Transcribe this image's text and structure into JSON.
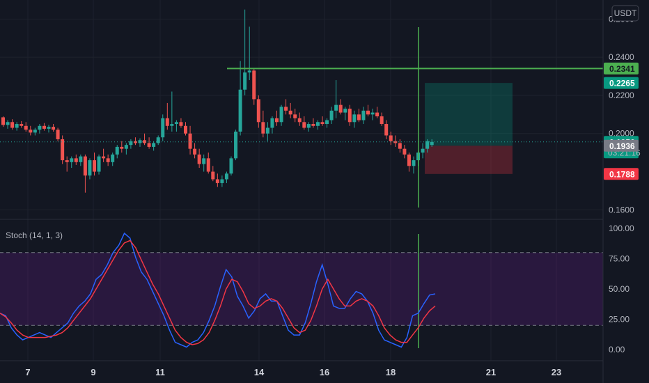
{
  "currency_badge": "USDT",
  "chart_data": [
    {
      "type": "candlestick",
      "y_axis_ticks": [
        "0.2600",
        "0.2400",
        "0.2200",
        "0.2000",
        "0.1600"
      ],
      "ylim": [
        0.155,
        0.27
      ],
      "x_axis_ticks": [
        "7",
        "9",
        "11",
        "14",
        "16",
        "18",
        "21",
        "23"
      ],
      "price_tags": [
        {
          "label": "0.2341",
          "value": 0.2341,
          "bg": "#4caf50",
          "fg": "#131722"
        },
        {
          "label": "0.2265",
          "value": 0.2265,
          "bg": "#089981",
          "fg": "#ffffff"
        },
        {
          "label": "0.1956",
          "value": 0.1956,
          "bg": "#089981",
          "fg": "#ffffff",
          "sub": "03:21:16"
        },
        {
          "label": "0.1936",
          "value": 0.1936,
          "bg": "#787b86",
          "fg": "#ffffff"
        },
        {
          "label": "0.1788",
          "value": 0.1788,
          "bg": "#f23645",
          "fg": "#ffffff"
        }
      ],
      "horizontal_line_value": 0.2341,
      "position": {
        "entry": 0.1936,
        "target": 0.2265,
        "stop": 0.1788
      },
      "candles": [
        [
          0.2085,
          0.209,
          0.2035,
          0.2045
        ],
        [
          0.2045,
          0.207,
          0.2025,
          0.206
        ],
        [
          0.206,
          0.2075,
          0.202,
          0.203
        ],
        [
          0.203,
          0.206,
          0.2015,
          0.205
        ],
        [
          0.205,
          0.2065,
          0.203,
          0.204
        ],
        [
          0.204,
          0.206,
          0.201,
          0.202
        ],
        [
          0.202,
          0.204,
          0.199,
          0.2005
        ],
        [
          0.2005,
          0.203,
          0.199,
          0.202
        ],
        [
          0.202,
          0.205,
          0.2,
          0.204
        ],
        [
          0.204,
          0.2055,
          0.2015,
          0.2025
        ],
        [
          0.2025,
          0.2045,
          0.2005,
          0.2035
        ],
        [
          0.2035,
          0.205,
          0.201,
          0.202
        ],
        [
          0.202,
          0.203,
          0.196,
          0.197
        ],
        [
          0.197,
          0.199,
          0.184,
          0.186
        ],
        [
          0.186,
          0.188,
          0.18,
          0.185
        ],
        [
          0.185,
          0.188,
          0.182,
          0.187
        ],
        [
          0.187,
          0.189,
          0.1835,
          0.185
        ],
        [
          0.185,
          0.189,
          0.183,
          0.188
        ],
        [
          0.188,
          0.189,
          0.169,
          0.178
        ],
        [
          0.178,
          0.187,
          0.176,
          0.186
        ],
        [
          0.186,
          0.19,
          0.178,
          0.18
        ],
        [
          0.18,
          0.189,
          0.1785,
          0.188
        ],
        [
          0.188,
          0.192,
          0.185,
          0.187
        ],
        [
          0.187,
          0.189,
          0.183,
          0.185
        ],
        [
          0.185,
          0.19,
          0.183,
          0.189
        ],
        [
          0.189,
          0.194,
          0.187,
          0.193
        ],
        [
          0.193,
          0.196,
          0.19,
          0.192
        ],
        [
          0.192,
          0.195,
          0.189,
          0.194
        ],
        [
          0.194,
          0.197,
          0.192,
          0.196
        ],
        [
          0.196,
          0.198,
          0.194,
          0.195
        ],
        [
          0.195,
          0.1975,
          0.193,
          0.1965
        ],
        [
          0.1965,
          0.2,
          0.194,
          0.195
        ],
        [
          0.195,
          0.198,
          0.192,
          0.193
        ],
        [
          0.193,
          0.196,
          0.191,
          0.195
        ],
        [
          0.195,
          0.199,
          0.194,
          0.198
        ],
        [
          0.198,
          0.21,
          0.196,
          0.208
        ],
        [
          0.208,
          0.216,
          0.202,
          0.204
        ],
        [
          0.204,
          0.222,
          0.201,
          0.205
        ],
        [
          0.205,
          0.207,
          0.201,
          0.206
        ],
        [
          0.206,
          0.208,
          0.203,
          0.204
        ],
        [
          0.204,
          0.206,
          0.199,
          0.2
        ],
        [
          0.2,
          0.204,
          0.189,
          0.192
        ],
        [
          0.192,
          0.195,
          0.187,
          0.189
        ],
        [
          0.189,
          0.192,
          0.182,
          0.184
        ],
        [
          0.184,
          0.189,
          0.18,
          0.187
        ],
        [
          0.187,
          0.19,
          0.179,
          0.18
        ],
        [
          0.18,
          0.183,
          0.175,
          0.176
        ],
        [
          0.176,
          0.179,
          0.172,
          0.174
        ],
        [
          0.174,
          0.178,
          0.172,
          0.176
        ],
        [
          0.176,
          0.18,
          0.174,
          0.179
        ],
        [
          0.179,
          0.188,
          0.178,
          0.187
        ],
        [
          0.187,
          0.202,
          0.186,
          0.201
        ],
        [
          0.201,
          0.238,
          0.199,
          0.223
        ],
        [
          0.223,
          0.265,
          0.22,
          0.232
        ],
        [
          0.232,
          0.256,
          0.228,
          0.233
        ],
        [
          0.233,
          0.234,
          0.215,
          0.218
        ],
        [
          0.218,
          0.22,
          0.203,
          0.206
        ],
        [
          0.206,
          0.212,
          0.198,
          0.2
        ],
        [
          0.2,
          0.206,
          0.196,
          0.203
        ],
        [
          0.203,
          0.209,
          0.2,
          0.208
        ],
        [
          0.208,
          0.212,
          0.204,
          0.206
        ],
        [
          0.206,
          0.215,
          0.204,
          0.214
        ],
        [
          0.214,
          0.218,
          0.21,
          0.212
        ],
        [
          0.212,
          0.216,
          0.208,
          0.21
        ],
        [
          0.21,
          0.213,
          0.206,
          0.208
        ],
        [
          0.208,
          0.211,
          0.204,
          0.206
        ],
        [
          0.206,
          0.209,
          0.202,
          0.203
        ],
        [
          0.203,
          0.206,
          0.201,
          0.205
        ],
        [
          0.205,
          0.208,
          0.203,
          0.204
        ],
        [
          0.204,
          0.207,
          0.202,
          0.206
        ],
        [
          0.206,
          0.209,
          0.204,
          0.205
        ],
        [
          0.205,
          0.208,
          0.203,
          0.207
        ],
        [
          0.207,
          0.214,
          0.205,
          0.212
        ],
        [
          0.212,
          0.228,
          0.208,
          0.215
        ],
        [
          0.215,
          0.218,
          0.21,
          0.211
        ],
        [
          0.211,
          0.214,
          0.207,
          0.213
        ],
        [
          0.213,
          0.215,
          0.204,
          0.206
        ],
        [
          0.206,
          0.212,
          0.203,
          0.21
        ],
        [
          0.21,
          0.213,
          0.206,
          0.207
        ],
        [
          0.207,
          0.214,
          0.205,
          0.212
        ],
        [
          0.212,
          0.215,
          0.209,
          0.21
        ],
        [
          0.21,
          0.213,
          0.207,
          0.211
        ],
        [
          0.211,
          0.214,
          0.208,
          0.209
        ],
        [
          0.209,
          0.211,
          0.204,
          0.205
        ],
        [
          0.205,
          0.207,
          0.197,
          0.199
        ],
        [
          0.199,
          0.201,
          0.194,
          0.196
        ],
        [
          0.196,
          0.199,
          0.193,
          0.195
        ],
        [
          0.195,
          0.197,
          0.19,
          0.192
        ],
        [
          0.192,
          0.194,
          0.187,
          0.189
        ],
        [
          0.189,
          0.19,
          0.18,
          0.183
        ],
        [
          0.183,
          0.188,
          0.179,
          0.186
        ],
        [
          0.186,
          0.191,
          0.183,
          0.19
        ],
        [
          0.19,
          0.195,
          0.187,
          0.192
        ],
        [
          0.192,
          0.197,
          0.19,
          0.196
        ],
        [
          0.194,
          0.197,
          0.193,
          0.1956
        ]
      ]
    },
    {
      "type": "line",
      "title": "Stoch (14, 1, 3)",
      "y_axis_ticks": [
        "100.00",
        "75.00",
        "50.00",
        "25.00",
        "0.00"
      ],
      "ylim": [
        0,
        100
      ],
      "band": [
        20,
        80
      ],
      "series": [
        {
          "color": "#2962ff",
          "values": [
            30,
            28,
            18,
            12,
            8,
            10,
            12,
            14,
            12,
            10,
            14,
            18,
            22,
            30,
            36,
            40,
            46,
            58,
            62,
            70,
            80,
            86,
            96,
            92,
            76,
            64,
            58,
            48,
            38,
            28,
            16,
            6,
            4,
            2,
            6,
            8,
            14,
            24,
            36,
            52,
            66,
            60,
            44,
            36,
            26,
            32,
            42,
            46,
            40,
            40,
            28,
            16,
            12,
            12,
            22,
            38,
            56,
            70,
            54,
            36,
            34,
            34,
            42,
            48,
            46,
            40,
            30,
            16,
            8,
            6,
            4,
            2,
            10,
            28,
            30,
            38,
            45,
            46
          ]
        },
        {
          "color": "#f23645",
          "values": [
            30,
            27,
            22,
            16,
            12,
            10,
            10,
            10,
            10,
            11,
            12,
            14,
            18,
            24,
            30,
            36,
            42,
            50,
            58,
            66,
            74,
            82,
            88,
            90,
            84,
            74,
            64,
            54,
            46,
            36,
            26,
            16,
            10,
            6,
            4,
            5,
            8,
            14,
            24,
            36,
            50,
            58,
            56,
            48,
            38,
            34,
            36,
            40,
            42,
            40,
            34,
            26,
            18,
            14,
            16,
            24,
            36,
            50,
            58,
            50,
            42,
            36,
            36,
            40,
            42,
            40,
            36,
            28,
            18,
            12,
            8,
            6,
            6,
            12,
            18,
            26,
            32,
            36
          ]
        }
      ]
    }
  ]
}
